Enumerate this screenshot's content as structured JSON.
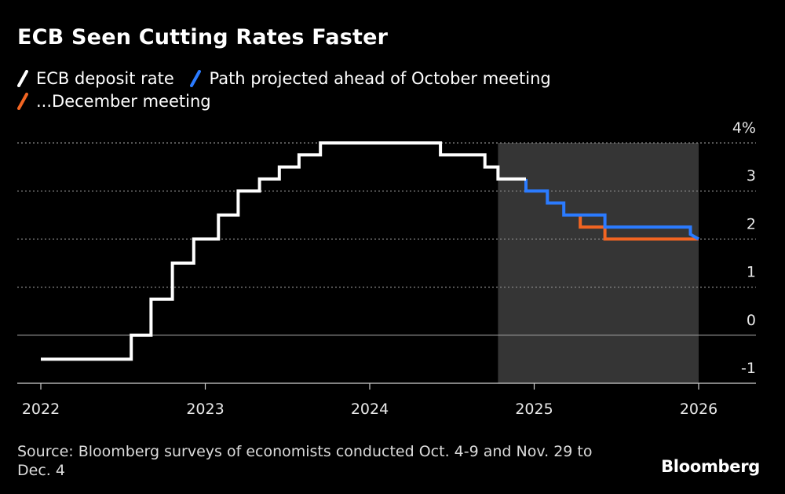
{
  "chart_data": {
    "type": "line",
    "title": "ECB Seen Cutting Rates Faster",
    "ylabel": "",
    "xlabel": "",
    "ylim": [
      -1,
      4
    ],
    "xlim": [
      2022,
      2026.4
    ],
    "y_ticks": [
      "4%",
      "3",
      "2",
      "1",
      "0",
      "-1"
    ],
    "y_tick_values": [
      4,
      3,
      2,
      1,
      0,
      -1
    ],
    "x_ticks": [
      "2022",
      "2023",
      "2024",
      "2025",
      "2026"
    ],
    "x_tick_values": [
      2022,
      2023,
      2024,
      2025,
      2026
    ],
    "shaded_region": [
      2024.78,
      2026
    ],
    "grid": "dotted horizontal",
    "legend_position": "top-left",
    "series": [
      {
        "name": "ECB deposit rate",
        "color": "#ffffff",
        "points": [
          [
            2022.0,
            -0.5
          ],
          [
            2022.55,
            -0.5
          ],
          [
            2022.55,
            0
          ],
          [
            2022.67,
            0
          ],
          [
            2022.67,
            0.75
          ],
          [
            2022.8,
            0.75
          ],
          [
            2022.8,
            1.5
          ],
          [
            2022.93,
            1.5
          ],
          [
            2022.93,
            2
          ],
          [
            2023.08,
            2
          ],
          [
            2023.08,
            2.5
          ],
          [
            2023.2,
            2.5
          ],
          [
            2023.2,
            3
          ],
          [
            2023.33,
            3
          ],
          [
            2023.33,
            3.25
          ],
          [
            2023.45,
            3.25
          ],
          [
            2023.45,
            3.5
          ],
          [
            2023.57,
            3.5
          ],
          [
            2023.57,
            3.75
          ],
          [
            2023.7,
            3.75
          ],
          [
            2023.7,
            4
          ],
          [
            2024.43,
            4
          ],
          [
            2024.43,
            3.75
          ],
          [
            2024.7,
            3.75
          ],
          [
            2024.7,
            3.5
          ],
          [
            2024.78,
            3.5
          ],
          [
            2024.78,
            3.25
          ],
          [
            2024.95,
            3.25
          ]
        ]
      },
      {
        "name": "Path projected ahead of October meeting",
        "color": "#2b7bff",
        "points": [
          [
            2024.95,
            3.25
          ],
          [
            2024.95,
            3.0
          ],
          [
            2025.08,
            3.0
          ],
          [
            2025.08,
            2.75
          ],
          [
            2025.18,
            2.75
          ],
          [
            2025.18,
            2.5
          ],
          [
            2025.43,
            2.5
          ],
          [
            2025.43,
            2.25
          ],
          [
            2025.95,
            2.25
          ],
          [
            2025.95,
            2.1
          ],
          [
            2026.0,
            2.0
          ]
        ]
      },
      {
        "name": "...December meeting",
        "color": "#f26522",
        "points": [
          [
            2025.28,
            2.5
          ],
          [
            2025.28,
            2.25
          ],
          [
            2025.43,
            2.25
          ],
          [
            2025.43,
            2.0
          ],
          [
            2026.0,
            2.0
          ]
        ]
      }
    ]
  },
  "legend": [
    {
      "label": "ECB deposit rate",
      "color": "#ffffff"
    },
    {
      "label": "Path projected ahead of October meeting",
      "color": "#2b7bff"
    },
    {
      "label": "...December meeting",
      "color": "#f26522"
    }
  ],
  "source": "Source: Bloomberg surveys of economists conducted Oct. 4-9 and Nov. 29 to Dec. 4",
  "brand": "Bloomberg"
}
